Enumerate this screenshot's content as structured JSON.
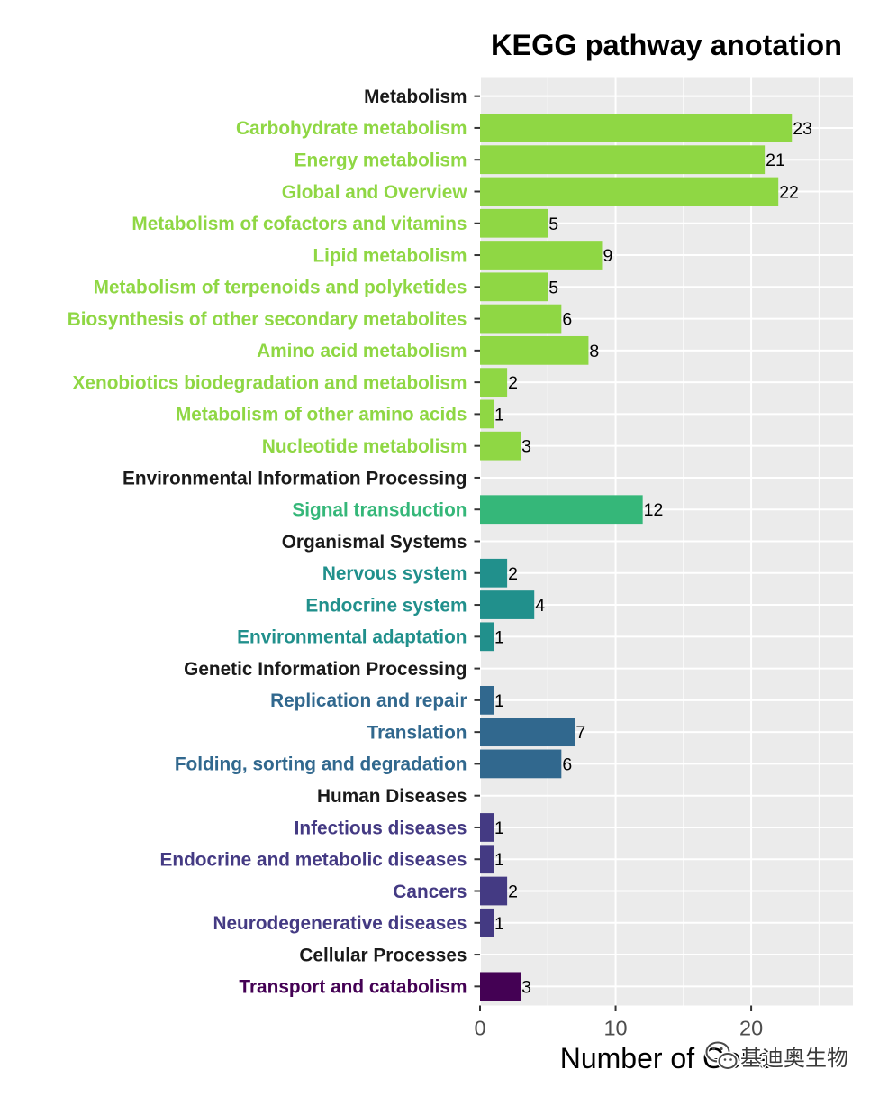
{
  "chart_data": {
    "type": "bar",
    "orientation": "horizontal",
    "title": "KEGG pathway anotation",
    "xlabel": "Number of Gene",
    "xlim": [
      0,
      27.5
    ],
    "x_ticks": [
      0,
      10,
      20
    ],
    "grid": true,
    "legend": "none",
    "colors": {
      "panel_background": "#EBEBEB",
      "header_label": "#1A1A1A",
      "gridline": "#FFFFFF",
      "axis_tick": "#333333"
    },
    "groups": [
      {
        "name": "Metabolism",
        "color": "#8FD744",
        "items": [
          {
            "label": "Carbohydrate metabolism",
            "value": 23
          },
          {
            "label": "Energy metabolism",
            "value": 21
          },
          {
            "label": "Global and Overview",
            "value": 22
          },
          {
            "label": "Metabolism of cofactors and vitamins",
            "value": 5
          },
          {
            "label": "Lipid metabolism",
            "value": 9
          },
          {
            "label": "Metabolism of terpenoids and polyketides",
            "value": 5
          },
          {
            "label": "Biosynthesis of other secondary metabolites",
            "value": 6
          },
          {
            "label": "Amino acid metabolism",
            "value": 8
          },
          {
            "label": "Xenobiotics biodegradation and metabolism",
            "value": 2
          },
          {
            "label": "Metabolism of other amino acids",
            "value": 1
          },
          {
            "label": "Nucleotide metabolism",
            "value": 3
          }
        ]
      },
      {
        "name": "Environmental Information Processing",
        "color": "#35B779",
        "items": [
          {
            "label": "Signal transduction",
            "value": 12
          }
        ]
      },
      {
        "name": "Organismal Systems",
        "color": "#21908C",
        "items": [
          {
            "label": "Nervous system",
            "value": 2
          },
          {
            "label": "Endocrine system",
            "value": 4
          },
          {
            "label": "Environmental adaptation",
            "value": 1
          }
        ]
      },
      {
        "name": "Genetic Information Processing",
        "color": "#31688E",
        "items": [
          {
            "label": "Replication and repair",
            "value": 1
          },
          {
            "label": "Translation",
            "value": 7
          },
          {
            "label": "Folding, sorting and degradation",
            "value": 6
          }
        ]
      },
      {
        "name": "Human Diseases",
        "color": "#443A83",
        "items": [
          {
            "label": "Infectious diseases",
            "value": 1
          },
          {
            "label": "Endocrine and metabolic diseases",
            "value": 1
          },
          {
            "label": "Cancers",
            "value": 2
          },
          {
            "label": "Neurodegenerative diseases",
            "value": 1
          }
        ]
      },
      {
        "name": "Cellular Processes",
        "color": "#440154",
        "items": [
          {
            "label": "Transport and catabolism",
            "value": 3
          }
        ]
      }
    ]
  },
  "watermark": {
    "text": "基迪奥生物",
    "icon": "wechat-icon"
  }
}
